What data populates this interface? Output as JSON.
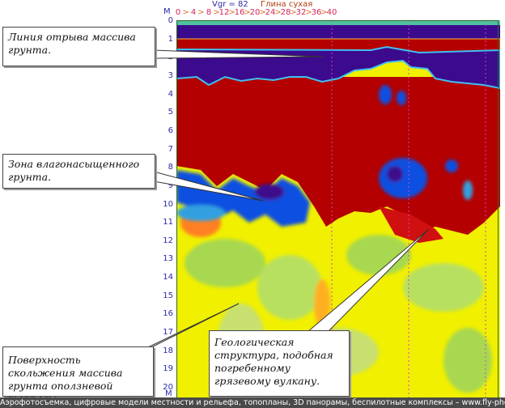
{
  "header": {
    "velocity": "Vgr = 82",
    "material": "Глина сухая",
    "x_unit": "M",
    "y_unit": "M"
  },
  "x_ticks": [
    "0",
    ">",
    "4",
    ">",
    "8",
    ">",
    "12",
    ">",
    "16",
    ">",
    "20",
    ">",
    "24",
    ">",
    "28",
    ">",
    "32",
    ">",
    "36",
    ">",
    "40"
  ],
  "y_ticks": [
    "0",
    "1",
    "2",
    "3",
    "4",
    "5",
    "6",
    "7",
    "8",
    "9",
    "10",
    "11",
    "12",
    "13",
    "14",
    "15",
    "16",
    "17",
    "18",
    "19",
    "20"
  ],
  "callouts": [
    {
      "text": "Линия отрыва массива грунта."
    },
    {
      "text": "Зона влагонасыщенного грунта."
    },
    {
      "text": "Поверхность  скольжения массива грунта оползневой террасы."
    },
    {
      "text": "Геологическая структура, подобная погребенному грязевому вулкану."
    }
  ],
  "colors": {
    "purple": "#3c0a8c",
    "red": "#b40000",
    "yellow": "#f0f000",
    "blue": "#1050e0",
    "green": "#a8d850",
    "marker": "#d040d0"
  },
  "footer": "Аэрофотосъемка, цифровые модели местности и рельефа, топопланы, 3D панорамы, беспилотные комплексы – www.fly-photo.ru"
}
